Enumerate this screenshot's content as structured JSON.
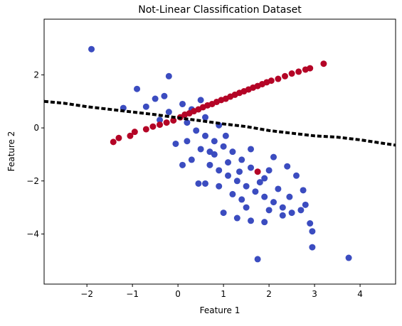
{
  "chart_data": {
    "type": "scatter",
    "title": "Not-Linear Classification Dataset",
    "xlabel": "Feature 1",
    "ylabel": "Feature 2",
    "xlim": [
      -2.94,
      4.78
    ],
    "ylim": [
      -5.89,
      4.1
    ],
    "xticks": [
      {
        "value": -2,
        "label": "−2"
      },
      {
        "value": -1,
        "label": "−1"
      },
      0,
      1,
      2,
      3,
      4
    ],
    "yticks": [
      {
        "value": -4,
        "label": "−4"
      },
      {
        "value": -2,
        "label": "−2"
      },
      0,
      2
    ],
    "series": [
      {
        "type": "scatter",
        "color": "#3b4cc0",
        "x": [
          -1.9,
          -0.2,
          -0.9,
          -1.2,
          -0.5,
          -0.3,
          0.1,
          -0.7,
          -0.2,
          0.2,
          0.4,
          0.6,
          0.8,
          1,
          1.2,
          0.5,
          0.3,
          0.7,
          0.9,
          1.1,
          1.3,
          1.5,
          1.7,
          1.9,
          2.1,
          2.3,
          2.5,
          2.7,
          2.9,
          2.95,
          2.95,
          1.75,
          3.75,
          1,
          1.6,
          1.9,
          0.1,
          0.45,
          0.6,
          -0.05,
          0.2,
          1.4,
          1.6,
          2,
          2.1,
          2.6,
          2.75,
          2.45,
          1.2,
          1.4,
          0.9,
          1.8,
          2.2,
          0.8,
          1.6,
          1.05,
          0.3,
          0.6,
          0.9,
          -0.4,
          0.5,
          1.5,
          2.3,
          2.8,
          1.3,
          2,
          0.7,
          1.1,
          1.9,
          1.35,
          2.4
        ],
        "values": [
          2.97,
          1.95,
          1.47,
          0.75,
          1.1,
          1.2,
          0.9,
          0.8,
          0.6,
          0.2,
          -0.1,
          -0.3,
          -0.5,
          -0.7,
          -0.9,
          -0.8,
          -1.2,
          -1.4,
          -1.6,
          -1.8,
          -2,
          -2.2,
          -2.4,
          -2.6,
          -2.8,
          -3,
          -3.2,
          -3.1,
          -3.6,
          -3.9,
          -4.5,
          -4.95,
          -4.9,
          -3.2,
          -3.5,
          -3.55,
          -1.4,
          -2.1,
          -2.1,
          -0.6,
          -0.5,
          -1.2,
          -1.5,
          -1.6,
          -1.1,
          -1.8,
          -2.35,
          -2.6,
          -2.5,
          -2.7,
          -2.2,
          -2.05,
          -2.3,
          -1,
          -0.8,
          -0.3,
          0.7,
          0.4,
          0.1,
          0.3,
          1.05,
          -3,
          -3.3,
          -2.9,
          -3.4,
          -3.1,
          -0.9,
          -1.3,
          -1.9,
          -1.65,
          -1.45
        ]
      },
      {
        "type": "scatter",
        "color": "#b40426",
        "x": [
          -1.42,
          -1.3,
          -1.05,
          -0.95,
          -0.7,
          -0.55,
          -0.4,
          -0.25,
          -0.1,
          0.05,
          0.15,
          0.25,
          0.35,
          0.45,
          0.55,
          0.65,
          0.75,
          0.85,
          0.95,
          1.05,
          1.15,
          1.25,
          1.35,
          1.45,
          1.55,
          1.65,
          1.75,
          1.85,
          1.95,
          2.05,
          2.2,
          2.35,
          2.5,
          2.65,
          2.8,
          2.9,
          3.2,
          1.75
        ],
        "values": [
          -0.53,
          -0.38,
          -0.3,
          -0.15,
          -0.05,
          0.05,
          0.12,
          0.2,
          0.28,
          0.4,
          0.5,
          0.55,
          0.63,
          0.7,
          0.78,
          0.85,
          0.9,
          0.98,
          1.05,
          1.1,
          1.18,
          1.25,
          1.32,
          1.38,
          1.45,
          1.52,
          1.58,
          1.65,
          1.72,
          1.78,
          1.85,
          1.95,
          2.05,
          2.12,
          2.2,
          2.25,
          2.42,
          -1.65
        ]
      },
      {
        "type": "line",
        "color": "#000000",
        "dash": "6,3",
        "x": [
          -2.94,
          -2.5,
          -2,
          -1.5,
          -1,
          -0.5,
          0,
          0.5,
          1,
          1.5,
          2,
          2.5,
          3,
          3.5,
          4,
          4.5,
          4.78
        ],
        "values": [
          1.0,
          0.93,
          0.8,
          0.7,
          0.6,
          0.5,
          0.38,
          0.27,
          0.15,
          0.05,
          -0.1,
          -0.2,
          -0.3,
          -0.35,
          -0.45,
          -0.58,
          -0.65
        ]
      }
    ]
  }
}
